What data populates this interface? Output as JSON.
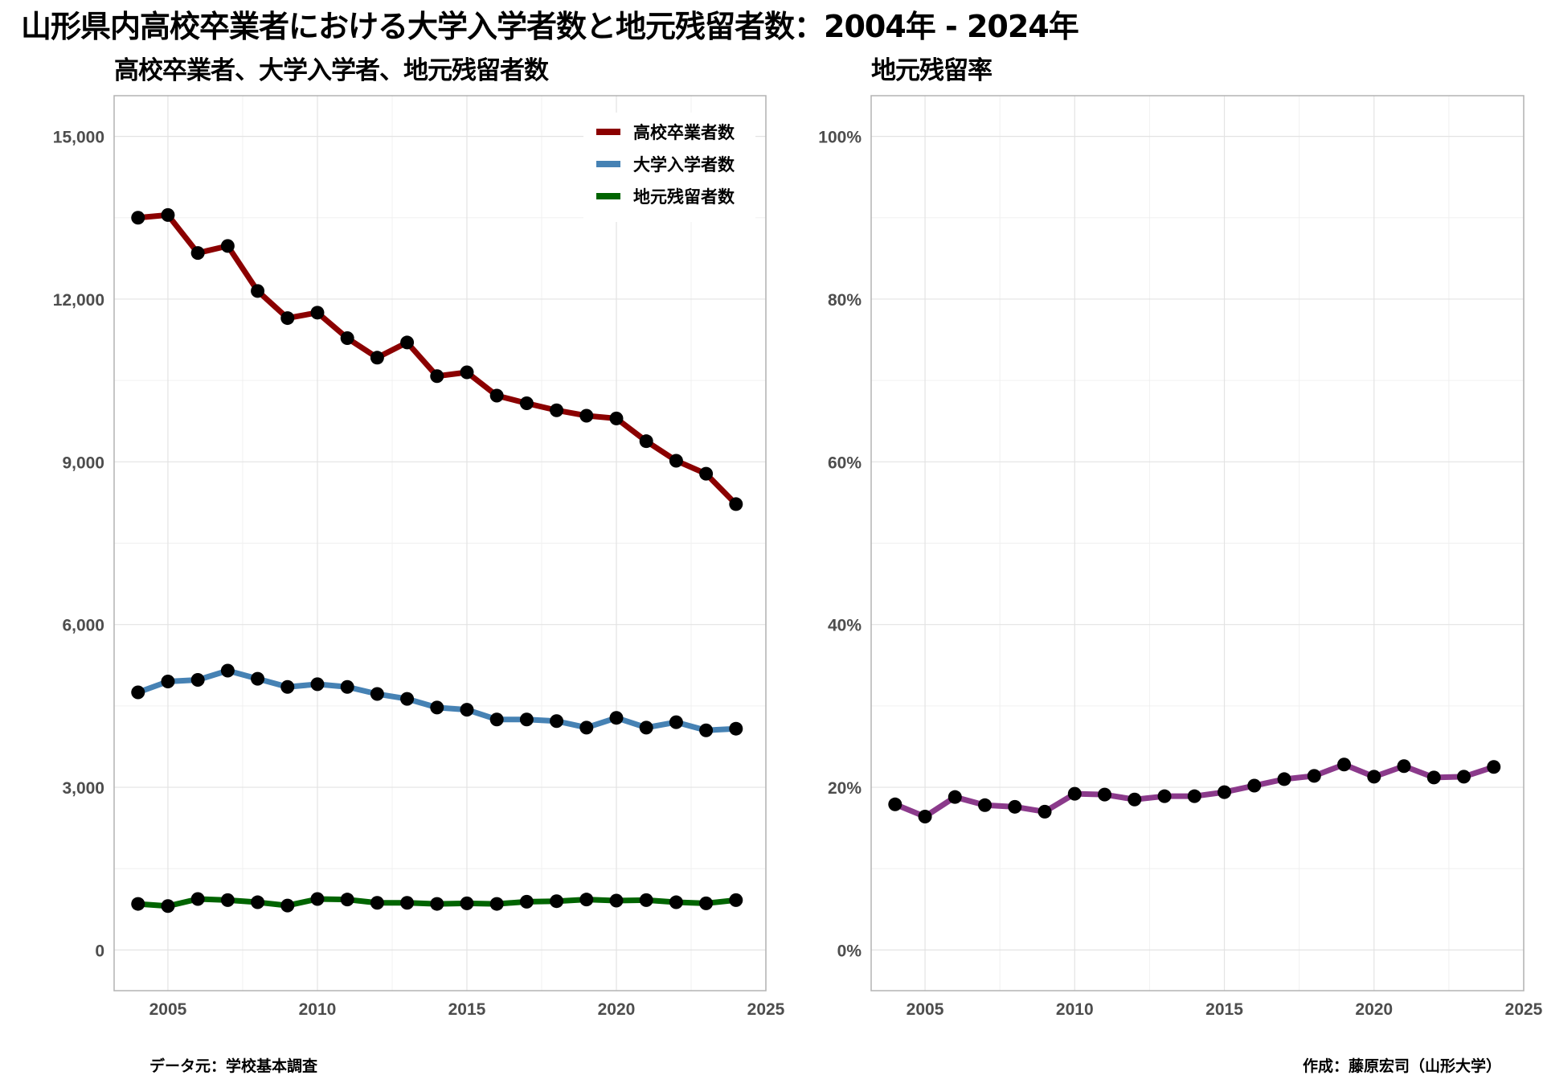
{
  "title": "山形県内高校卒業者における大学入学者数と地元残留者数：2004年 - 2024年",
  "footer": {
    "source": "データ元：学校基本調査",
    "credit": "作成：藤原宏司（山形大学）"
  },
  "chart_data": [
    {
      "type": "line",
      "title": "高校卒業者、大学入学者、地元残留者数",
      "xlabel": "",
      "ylabel": "",
      "x": [
        2004,
        2005,
        2006,
        2007,
        2008,
        2009,
        2010,
        2011,
        2012,
        2013,
        2014,
        2015,
        2016,
        2017,
        2018,
        2019,
        2020,
        2021,
        2022,
        2023,
        2024
      ],
      "xlim": [
        2003.2,
        2025
      ],
      "ylim": [
        -750,
        15750
      ],
      "xticks": [
        2005,
        2010,
        2015,
        2020,
        2025
      ],
      "yticks": [
        0,
        3000,
        6000,
        9000,
        12000,
        15000
      ],
      "ytick_labels": [
        "0",
        "3,000",
        "6,000",
        "9,000",
        "12,000",
        "15,000"
      ],
      "grid": true,
      "legend_position": "top-right",
      "series": [
        {
          "name": "高校卒業者数",
          "color": "#8b0000",
          "values": [
            13500,
            13550,
            12850,
            12980,
            12150,
            11650,
            11750,
            11280,
            10920,
            11200,
            10580,
            10650,
            10220,
            10080,
            9950,
            9850,
            9800,
            9380,
            9020,
            8780,
            8220
          ]
        },
        {
          "name": "大学入学者数",
          "color": "#4682b4",
          "values": [
            4750,
            4950,
            4980,
            5150,
            5000,
            4850,
            4900,
            4850,
            4720,
            4630,
            4470,
            4430,
            4250,
            4250,
            4220,
            4100,
            4280,
            4100,
            4200,
            4050,
            4080
          ]
        },
        {
          "name": "地元残留者数",
          "color": "#006400",
          "values": [
            850,
            810,
            940,
            920,
            880,
            820,
            940,
            930,
            870,
            870,
            850,
            860,
            850,
            890,
            900,
            930,
            910,
            920,
            880,
            860,
            920
          ]
        }
      ],
      "marker_color": "#000000"
    },
    {
      "type": "line",
      "title": "地元残留率",
      "xlabel": "",
      "ylabel": "",
      "x": [
        2004,
        2005,
        2006,
        2007,
        2008,
        2009,
        2010,
        2011,
        2012,
        2013,
        2014,
        2015,
        2016,
        2017,
        2018,
        2019,
        2020,
        2021,
        2022,
        2023,
        2024
      ],
      "xlim": [
        2003.2,
        2025
      ],
      "ylim": [
        -5,
        105
      ],
      "xticks": [
        2005,
        2010,
        2015,
        2020,
        2025
      ],
      "yticks": [
        0,
        20,
        40,
        60,
        80,
        100
      ],
      "ytick_labels": [
        "0%",
        "20%",
        "40%",
        "60%",
        "80%",
        "100%"
      ],
      "grid": true,
      "series": [
        {
          "color": "#8b3a8b",
          "values": [
            17.9,
            16.4,
            18.8,
            17.8,
            17.6,
            17.0,
            19.2,
            19.1,
            18.5,
            18.9,
            18.9,
            19.4,
            20.2,
            21.0,
            21.4,
            22.8,
            21.3,
            22.6,
            21.2,
            21.3,
            22.5
          ]
        }
      ],
      "marker_color": "#000000"
    }
  ]
}
